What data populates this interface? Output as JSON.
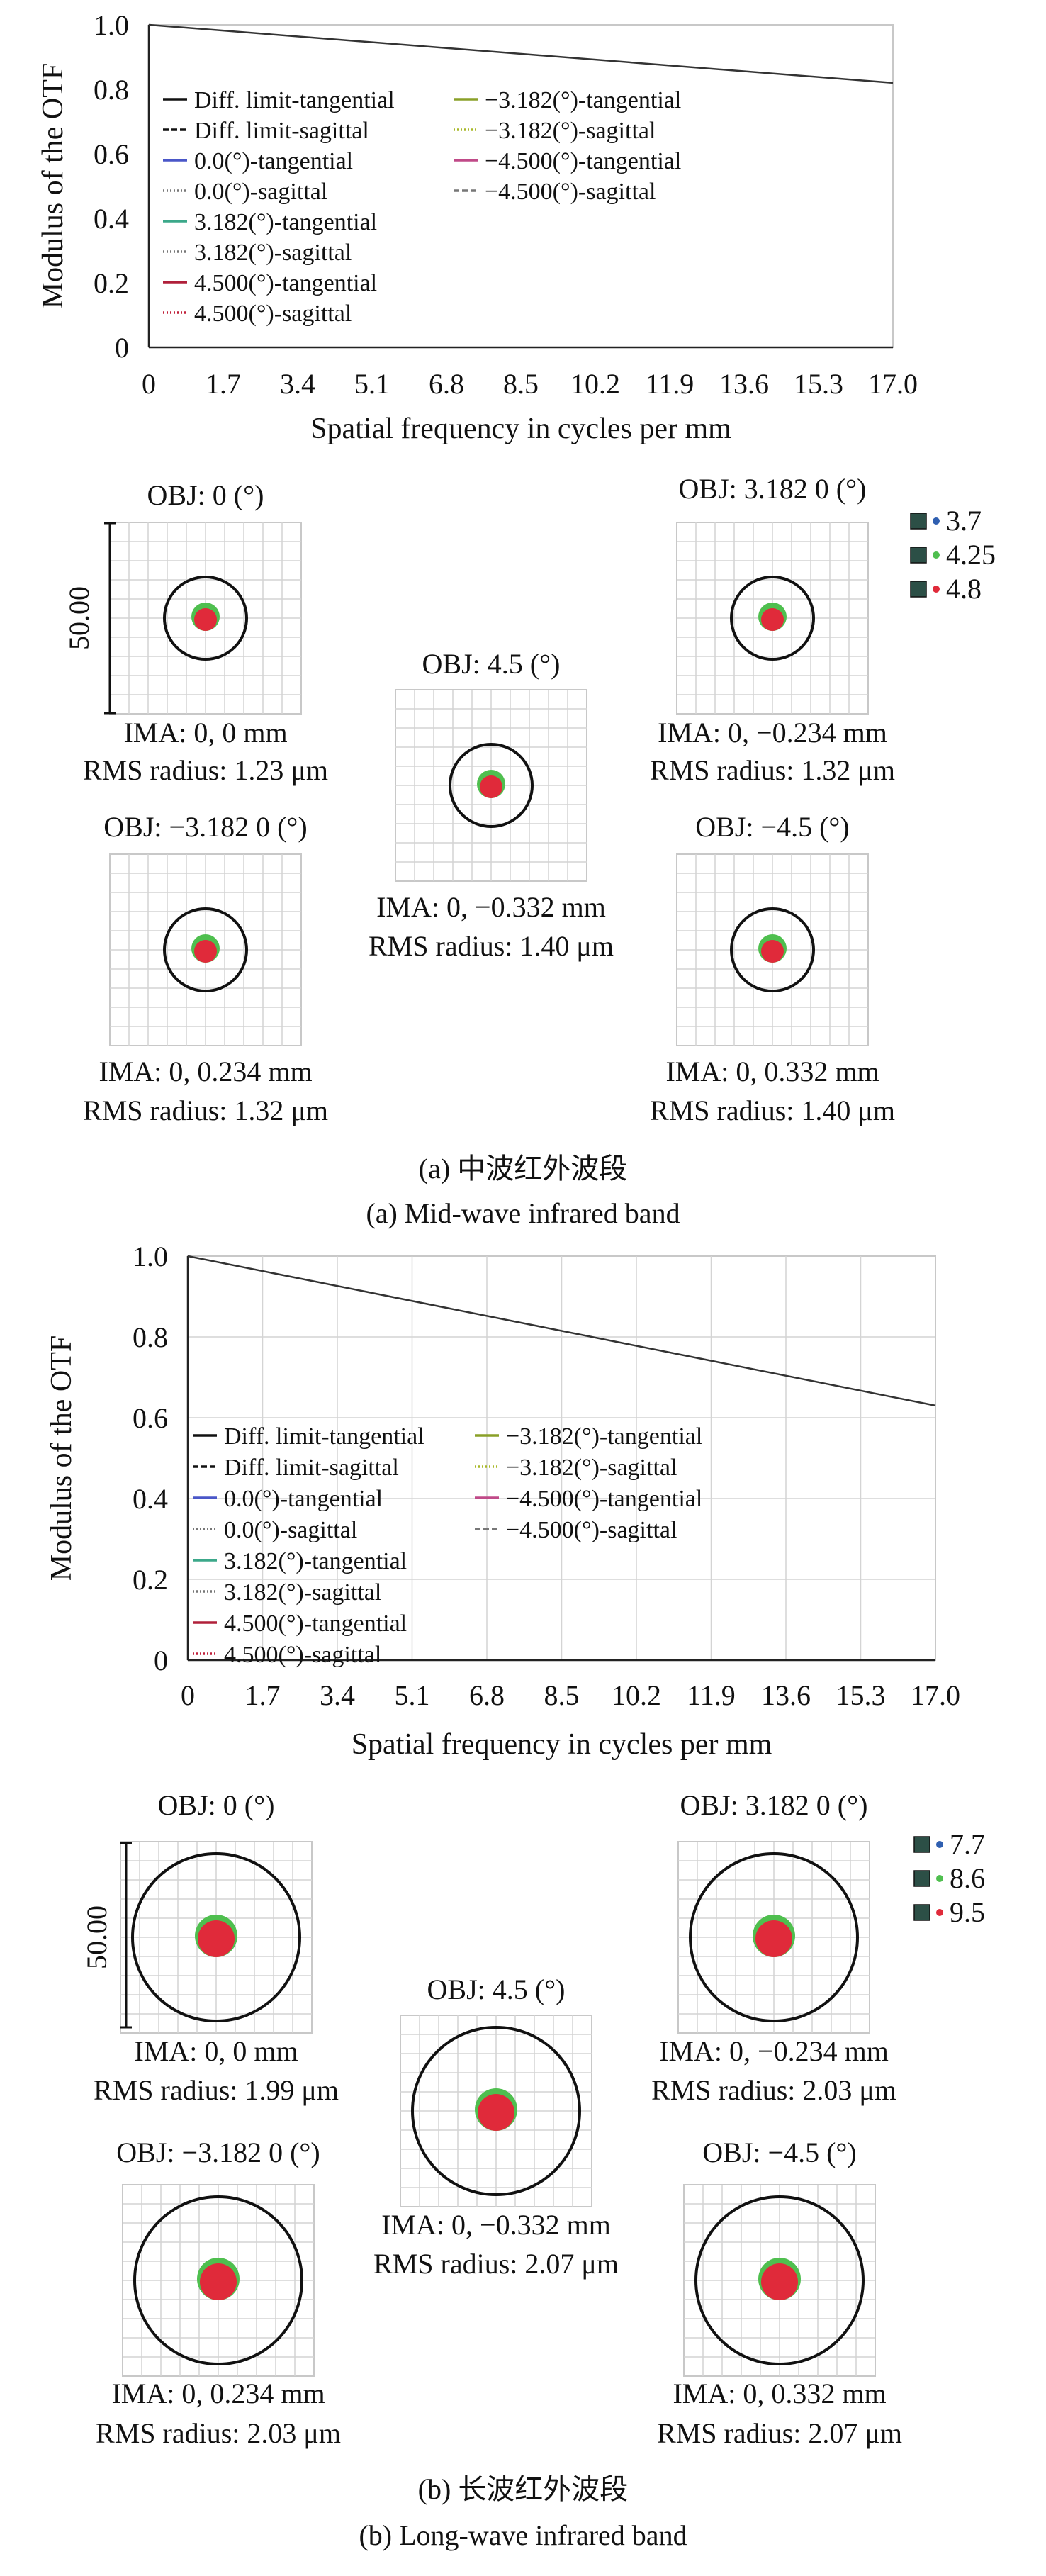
{
  "colors": {
    "grid": "#d4d4d4",
    "frame": "#c8c8c8",
    "diff_line": "#333333",
    "circle": "#111111",
    "spot_red": "#e02a3a",
    "spot_green": "#4fbf4f",
    "spot_blue": "#2f5fb0"
  },
  "line_styles": [
    "solid",
    "dashed",
    "solid",
    "dotted",
    "solid",
    "dotted",
    "solid",
    "dotted",
    "solid",
    "dotted",
    "solid",
    "dashed"
  ],
  "line_colors": [
    "#111111",
    "#111111",
    "#4a57c8",
    "#777777",
    "#3ca88a",
    "#777777",
    "#b0203a",
    "#c0203a",
    "#8aa028",
    "#a8b828",
    "#c04a88",
    "#777777"
  ],
  "panels": [
    {
      "caption_cn": "(a) 中波红外波段",
      "caption_en": "(a) Mid-wave infrared band",
      "chart_data": {
        "type": "line",
        "ylabel": "Modulus of the OTF",
        "xlabel": "Spatial frequency in cycles per mm",
        "x_ticks": [
          "0",
          "1.7",
          "3.4",
          "5.1",
          "6.8",
          "8.5",
          "10.2",
          "11.9",
          "13.6",
          "15.3",
          "17.0"
        ],
        "y_ticks": [
          "0",
          "0.2",
          "0.4",
          "0.6",
          "0.8",
          "1.0"
        ],
        "xlim": [
          0,
          17.0
        ],
        "ylim": [
          0,
          1.0
        ],
        "grid": false,
        "legend_placement": "center-left, two columns",
        "legend": [
          "Diff. limit-tangential",
          "Diff. limit-sagittal",
          "0.0(°)-tangential",
          "0.0(°)-sagittal",
          "3.182(°)-tangential",
          "3.182(°)-sagittal",
          "4.500(°)-tangential",
          "4.500(°)-sagittal",
          "−3.182(°)-tangential",
          "−3.182(°)-sagittal",
          "−4.500(°)-tangential",
          "−4.500(°)-sagittal"
        ],
        "series": [
          {
            "name": "Diff. limit-tangential",
            "x": [
              0,
              17.0
            ],
            "y": [
              1.0,
              0.82
            ]
          }
        ]
      },
      "spots": {
        "scale": "50.00",
        "wavelengths": [
          "3.7",
          "4.25",
          "4.8"
        ],
        "items": [
          {
            "obj": "OBJ: 0 (°)",
            "ima": "IMA: 0, 0 mm",
            "rms": "RMS radius: 1.23 μm"
          },
          {
            "obj": "OBJ: 3.182 0 (°)",
            "ima": "IMA: 0, −0.234 mm",
            "rms": "RMS radius: 1.32 μm"
          },
          {
            "obj": "OBJ: 4.5 (°)",
            "ima": "IMA: 0, −0.332 mm",
            "rms": "RMS radius: 1.40 μm"
          },
          {
            "obj": "OBJ: −3.182 0 (°)",
            "ima": "IMA: 0, 0.234 mm",
            "rms": "RMS radius: 1.32 μm"
          },
          {
            "obj": "OBJ: −4.5 (°)",
            "ima": "IMA: 0, 0.332 mm",
            "rms": "RMS radius: 1.40 μm"
          }
        ]
      }
    },
    {
      "caption_cn": "(b) 长波红外波段",
      "caption_en": "(b) Long-wave infrared band",
      "chart_data": {
        "type": "line",
        "ylabel": "Modulus of the OTF",
        "xlabel": "Spatial frequency in cycles per mm",
        "x_ticks": [
          "0",
          "1.7",
          "3.4",
          "5.1",
          "6.8",
          "8.5",
          "10.2",
          "11.9",
          "13.6",
          "15.3",
          "17.0"
        ],
        "y_ticks": [
          "0",
          "0.2",
          "0.4",
          "0.6",
          "0.8",
          "1.0"
        ],
        "xlim": [
          0,
          17.0
        ],
        "ylim": [
          0,
          1.0
        ],
        "grid": true,
        "legend_placement": "lower-left, two columns",
        "legend": [
          "Diff. limit-tangential",
          "Diff. limit-sagittal",
          "0.0(°)-tangential",
          "0.0(°)-sagittal",
          "3.182(°)-tangential",
          "3.182(°)-sagittal",
          "4.500(°)-tangential",
          "4.500(°)-sagittal",
          "−3.182(°)-tangential",
          "−3.182(°)-sagittal",
          "−4.500(°)-tangential",
          "−4.500(°)-sagittal"
        ],
        "series": [
          {
            "name": "Diff. limit-tangential",
            "x": [
              0,
              17.0
            ],
            "y": [
              1.0,
              0.63
            ]
          }
        ]
      },
      "spots": {
        "scale": "50.00",
        "wavelengths": [
          "7.7",
          "8.6",
          "9.5"
        ],
        "items": [
          {
            "obj": "OBJ: 0 (°)",
            "ima": "IMA: 0, 0 mm",
            "rms": "RMS radius: 1.99 μm"
          },
          {
            "obj": "OBJ: 3.182 0 (°)",
            "ima": "IMA: 0, −0.234 mm",
            "rms": "RMS radius: 2.03 μm"
          },
          {
            "obj": "OBJ: 4.5 (°)",
            "ima": "IMA: 0, −0.332 mm",
            "rms": "RMS radius: 2.07 μm"
          },
          {
            "obj": "OBJ: −3.182 0 (°)",
            "ima": "IMA: 0, 0.234 mm",
            "rms": "RMS radius: 2.03 μm"
          },
          {
            "obj": "OBJ: −4.5 (°)",
            "ima": "IMA: 0, 0.332 mm",
            "rms": "RMS radius: 2.07 μm"
          }
        ]
      }
    }
  ]
}
